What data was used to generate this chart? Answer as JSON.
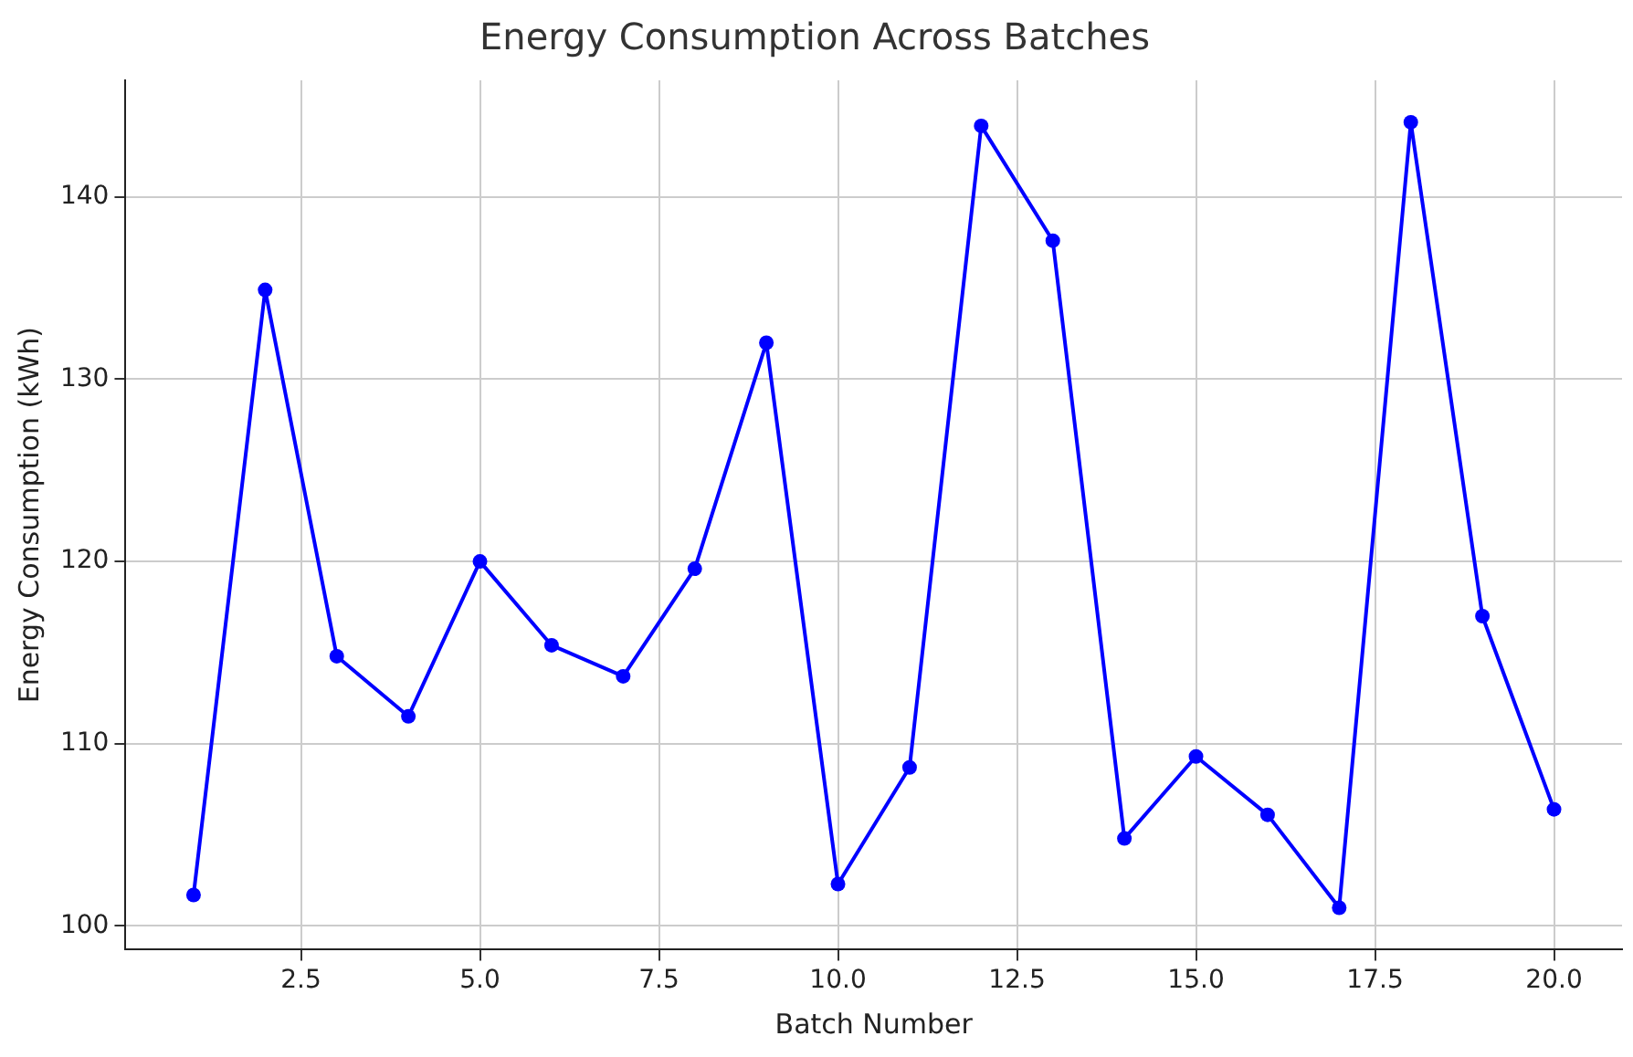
{
  "chart_data": {
    "type": "line",
    "title": "Energy Consumption Across Batches",
    "xlabel": "Batch Number",
    "ylabel": "Energy Consumption (kWh)",
    "x": [
      1,
      2,
      3,
      4,
      5,
      6,
      7,
      8,
      9,
      10,
      11,
      12,
      13,
      14,
      15,
      16,
      17,
      18,
      19,
      20
    ],
    "series": [
      {
        "color": "#0000ff",
        "values": [
          101.7,
          134.9,
          114.8,
          111.5,
          120.0,
          115.4,
          113.7,
          119.6,
          132.0,
          102.3,
          108.7,
          143.9,
          137.6,
          104.8,
          109.3,
          106.1,
          101.0,
          144.1,
          117.0,
          106.4
        ]
      }
    ],
    "xlim": [
      0.05,
      20.95
    ],
    "ylim": [
      98.7,
      146.4
    ],
    "xticks": [
      2.5,
      {
        "value": 5,
        "label": "5.0"
      },
      7.5,
      {
        "value": 10,
        "label": "10.0"
      },
      12.5,
      {
        "value": 15,
        "label": "15.0"
      },
      17.5,
      {
        "value": 20,
        "label": "20.0"
      }
    ],
    "yticks": [
      100,
      110,
      120,
      130,
      140
    ],
    "grid": true,
    "marker": "circle",
    "line_style": "solid",
    "legend": false
  }
}
